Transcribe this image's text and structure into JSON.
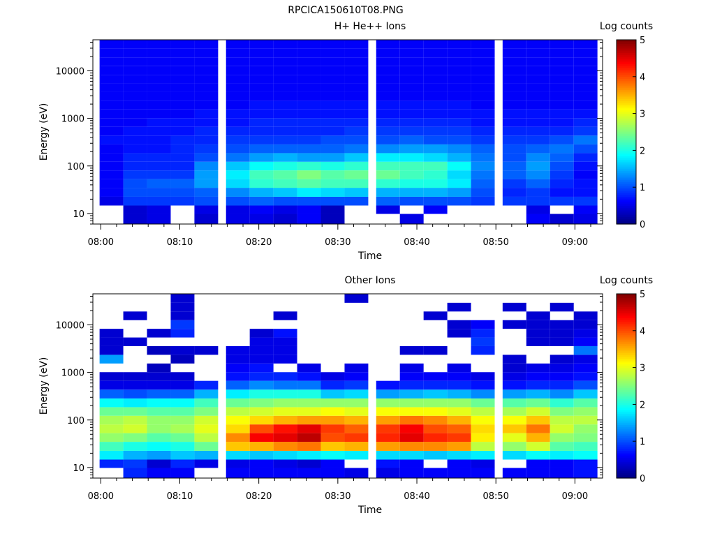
{
  "figure": {
    "title": "RPCICA150610T08.PNG"
  },
  "chart_data": [
    {
      "type": "heatmap",
      "title": "H+ He++ Ions",
      "xlabel": "Time",
      "ylabel": "Energy (eV)",
      "yscale": "log",
      "xlim": [
        "07:59:00",
        "09:03:30"
      ],
      "ylim": [
        6,
        45000
      ],
      "x_ticks": [
        "08:00",
        "08:10",
        "08:20",
        "08:30",
        "08:40",
        "08:50",
        "09:00"
      ],
      "y_ticks": [
        10,
        100,
        1000,
        10000
      ],
      "y_tick_labels": [
        "10",
        "100",
        "1000",
        "10000"
      ],
      "colorbar": {
        "label": "Log counts",
        "min": 0,
        "max": 5,
        "ticks": [
          0,
          1,
          2,
          3,
          4,
          5
        ],
        "colormap": "jet"
      },
      "time_columns": [
        "08:00",
        "08:03",
        "08:06",
        "08:09",
        "08:12",
        "08:16",
        "08:19",
        "08:22",
        "08:25",
        "08:28",
        "08:31",
        "08:35",
        "08:38",
        "08:41",
        "08:44",
        "08:47",
        "08:51",
        "08:54",
        "08:57",
        "09:00"
      ],
      "energy_bins_eV": [
        8,
        12,
        18,
        28,
        43,
        65,
        100,
        150,
        230,
        350,
        540,
        820,
        1250,
        1900,
        2900,
        4400,
        6700,
        10200,
        15500,
        23600,
        36000
      ],
      "log_counts": [
        [
          null,
          0.4,
          0.5,
          null,
          0.4,
          0.5,
          0.5,
          0.4,
          0.6,
          0.3,
          null,
          null,
          0.5,
          null,
          null,
          null,
          null,
          0.6,
          0.4,
          0.5
        ],
        [
          null,
          0.4,
          0.5,
          null,
          0.5,
          0.5,
          0.6,
          0.5,
          0.6,
          0.3,
          null,
          0.5,
          null,
          0.6,
          null,
          null,
          null,
          0.5,
          null,
          0.6
        ],
        [
          0.5,
          0.9,
          0.9,
          0.9,
          1.0,
          1.0,
          1.1,
          1.0,
          1.0,
          1.0,
          1.0,
          1.1,
          1.0,
          1.0,
          1.0,
          0.9,
          0.9,
          0.9,
          0.9,
          0.9
        ],
        [
          0.6,
          1.0,
          1.0,
          1.0,
          1.1,
          1.3,
          1.5,
          1.6,
          1.8,
          1.7,
          1.6,
          1.5,
          1.5,
          1.5,
          1.4,
          1.0,
          0.8,
          0.9,
          0.7,
          0.7
        ],
        [
          0.6,
          1.0,
          1.1,
          1.1,
          1.4,
          1.7,
          2.1,
          2.2,
          2.3,
          2.2,
          2.2,
          2.1,
          2.0,
          2.0,
          1.8,
          1.1,
          0.9,
          1.1,
          0.8,
          0.7
        ],
        [
          0.6,
          0.9,
          0.9,
          0.9,
          1.4,
          1.8,
          2.2,
          2.3,
          2.5,
          2.3,
          2.4,
          2.4,
          2.2,
          2.1,
          1.7,
          1.2,
          1.1,
          1.3,
          0.9,
          0.6
        ],
        [
          0.6,
          0.8,
          0.8,
          0.8,
          1.3,
          1.6,
          1.9,
          2.0,
          2.1,
          2.0,
          2.1,
          2.2,
          2.2,
          2.2,
          1.9,
          1.3,
          1.1,
          1.4,
          1.0,
          0.7
        ],
        [
          0.6,
          0.8,
          0.8,
          0.8,
          1.0,
          1.2,
          1.4,
          1.5,
          1.4,
          1.4,
          1.6,
          1.8,
          1.8,
          1.7,
          1.5,
          1.2,
          1.0,
          1.3,
          1.1,
          0.8
        ],
        [
          0.6,
          0.7,
          0.7,
          0.8,
          0.9,
          1.0,
          1.1,
          1.1,
          1.1,
          1.1,
          1.2,
          1.3,
          1.4,
          1.4,
          1.3,
          1.1,
          1.0,
          1.1,
          1.2,
          1.0
        ],
        [
          0.7,
          0.7,
          0.7,
          0.8,
          0.8,
          0.9,
          0.9,
          0.9,
          0.9,
          1.0,
          1.0,
          1.0,
          1.1,
          1.0,
          1.0,
          0.9,
          0.9,
          0.9,
          1.0,
          1.2
        ],
        [
          0.6,
          0.7,
          0.7,
          0.7,
          0.8,
          0.8,
          0.8,
          0.8,
          0.8,
          0.8,
          0.9,
          0.9,
          0.9,
          0.9,
          0.9,
          0.8,
          0.8,
          0.8,
          0.8,
          0.9
        ],
        [
          0.6,
          0.6,
          0.7,
          0.7,
          0.7,
          0.7,
          0.8,
          0.8,
          0.8,
          0.8,
          0.8,
          0.8,
          0.8,
          0.8,
          0.8,
          0.7,
          0.7,
          0.7,
          0.7,
          0.8
        ],
        [
          0.6,
          0.6,
          0.6,
          0.6,
          0.7,
          0.7,
          0.7,
          0.7,
          0.7,
          0.7,
          0.7,
          0.7,
          0.7,
          0.7,
          0.7,
          0.7,
          0.7,
          0.7,
          0.7,
          0.7
        ],
        [
          0.6,
          0.6,
          0.6,
          0.6,
          0.6,
          0.6,
          0.7,
          0.7,
          0.7,
          0.7,
          0.7,
          0.7,
          0.7,
          0.7,
          0.7,
          0.6,
          0.6,
          0.6,
          0.6,
          0.6
        ],
        [
          0.6,
          0.6,
          0.6,
          0.6,
          0.6,
          0.6,
          0.6,
          0.6,
          0.6,
          0.6,
          0.6,
          0.6,
          0.6,
          0.6,
          0.6,
          0.6,
          0.6,
          0.6,
          0.6,
          0.6
        ],
        [
          0.6,
          0.6,
          0.6,
          0.6,
          0.6,
          0.6,
          0.6,
          0.6,
          0.6,
          0.6,
          0.6,
          0.6,
          0.6,
          0.6,
          0.6,
          0.6,
          0.6,
          0.6,
          0.6,
          0.6
        ],
        [
          0.6,
          0.6,
          0.6,
          0.6,
          0.6,
          0.6,
          0.6,
          0.6,
          0.6,
          0.6,
          0.6,
          0.6,
          0.6,
          0.6,
          0.6,
          0.6,
          0.6,
          0.6,
          0.6,
          0.6
        ],
        [
          0.6,
          0.6,
          0.6,
          0.6,
          0.6,
          0.6,
          0.6,
          0.6,
          0.6,
          0.6,
          0.6,
          0.6,
          0.6,
          0.6,
          0.6,
          0.6,
          0.6,
          0.6,
          0.6,
          0.6
        ],
        [
          0.6,
          0.6,
          0.6,
          0.6,
          0.6,
          0.6,
          0.6,
          0.6,
          0.6,
          0.6,
          0.6,
          0.6,
          0.6,
          0.6,
          0.6,
          0.6,
          0.6,
          0.6,
          0.6,
          0.6
        ],
        [
          0.6,
          0.6,
          0.6,
          0.6,
          0.6,
          0.6,
          0.6,
          0.6,
          0.6,
          0.6,
          0.6,
          0.6,
          0.6,
          0.6,
          0.6,
          0.6,
          0.6,
          0.6,
          0.6,
          0.6
        ],
        [
          0.6,
          0.6,
          0.6,
          0.6,
          0.6,
          0.6,
          0.6,
          0.6,
          0.6,
          0.6,
          0.6,
          0.6,
          0.6,
          0.6,
          0.6,
          0.6,
          0.6,
          0.6,
          0.6,
          0.6
        ]
      ]
    },
    {
      "type": "heatmap",
      "title": "Other Ions",
      "xlabel": "Time",
      "ylabel": "Energy (eV)",
      "yscale": "log",
      "xlim": [
        "07:59:00",
        "09:03:30"
      ],
      "ylim": [
        6,
        45000
      ],
      "x_ticks": [
        "08:00",
        "08:10",
        "08:20",
        "08:30",
        "08:40",
        "08:50",
        "09:00"
      ],
      "y_ticks": [
        10,
        100,
        1000,
        10000
      ],
      "y_tick_labels": [
        "10",
        "100",
        "1000",
        "10000"
      ],
      "colorbar": {
        "label": "Log counts",
        "min": 0,
        "max": 5,
        "ticks": [
          0,
          1,
          2,
          3,
          4,
          5
        ],
        "colormap": "jet"
      },
      "time_columns": [
        "08:00",
        "08:03",
        "08:06",
        "08:09",
        "08:12",
        "08:16",
        "08:19",
        "08:22",
        "08:25",
        "08:28",
        "08:31",
        "08:35",
        "08:38",
        "08:41",
        "08:44",
        "08:47",
        "08:51",
        "08:54",
        "08:57",
        "09:00"
      ],
      "energy_bins_eV": [
        8,
        12,
        18,
        28,
        43,
        65,
        100,
        150,
        230,
        350,
        540,
        820,
        1250,
        1900,
        2900,
        4400,
        6700,
        10200,
        15500,
        23600,
        36000
      ],
      "log_counts": [
        [
          null,
          0.8,
          0.6,
          0.6,
          null,
          0.6,
          0.6,
          0.6,
          0.6,
          0.6,
          0.5,
          0.5,
          0.6,
          0.6,
          0.6,
          0.6,
          0.6,
          0.6,
          0.6,
          0.7
        ],
        [
          0.8,
          0.9,
          0.4,
          0.8,
          0.5,
          0.5,
          0.6,
          0.5,
          0.4,
          0.6,
          null,
          0.7,
          0.6,
          null,
          0.6,
          0.5,
          null,
          0.6,
          0.6,
          0.7
        ],
        [
          1.8,
          1.5,
          1.4,
          1.6,
          1.5,
          1.7,
          1.6,
          1.7,
          1.8,
          1.9,
          1.8,
          1.7,
          1.7,
          1.6,
          1.7,
          1.8,
          1.7,
          1.9,
          1.8,
          1.9
        ],
        [
          2.2,
          2.0,
          1.9,
          2.0,
          2.4,
          3.4,
          3.5,
          3.7,
          3.8,
          3.4,
          3.5,
          3.6,
          3.7,
          3.7,
          3.6,
          2.8,
          2.6,
          2.9,
          2.3,
          2.2
        ],
        [
          2.6,
          2.5,
          2.3,
          2.4,
          2.8,
          3.7,
          4.4,
          4.5,
          4.7,
          4.0,
          4.1,
          4.2,
          4.5,
          4.2,
          4.1,
          3.2,
          3.0,
          3.5,
          2.6,
          2.5
        ],
        [
          2.8,
          2.9,
          2.6,
          2.7,
          3.0,
          3.3,
          4.0,
          4.3,
          4.5,
          4.1,
          3.9,
          4.1,
          4.4,
          4.0,
          3.9,
          3.3,
          3.4,
          3.8,
          2.9,
          2.6
        ],
        [
          2.7,
          2.8,
          2.6,
          2.6,
          2.9,
          3.1,
          3.3,
          3.5,
          3.6,
          3.6,
          3.5,
          3.6,
          3.8,
          3.7,
          3.5,
          3.1,
          3.1,
          3.4,
          2.8,
          2.8
        ],
        [
          2.4,
          2.4,
          2.3,
          2.3,
          2.5,
          2.8,
          2.9,
          3.0,
          3.0,
          3.1,
          3.0,
          3.1,
          3.1,
          3.1,
          3.0,
          2.8,
          2.7,
          2.9,
          2.5,
          2.6
        ],
        [
          1.9,
          1.8,
          1.9,
          1.9,
          2.2,
          2.4,
          2.5,
          2.6,
          2.6,
          2.6,
          2.6,
          2.6,
          2.6,
          2.6,
          2.6,
          2.4,
          2.3,
          2.4,
          2.1,
          2.3
        ],
        [
          1.1,
          1.0,
          1.1,
          1.1,
          1.5,
          1.8,
          2.0,
          2.0,
          2.0,
          1.6,
          1.7,
          1.4,
          1.5,
          1.6,
          1.5,
          1.3,
          1.4,
          1.5,
          1.3,
          1.6
        ],
        [
          0.5,
          0.5,
          0.5,
          0.5,
          0.8,
          1.1,
          1.3,
          1.2,
          1.2,
          0.8,
          0.9,
          0.7,
          0.8,
          0.8,
          0.8,
          0.7,
          0.7,
          0.8,
          0.8,
          1.0
        ],
        [
          0.4,
          0.4,
          0.4,
          0.4,
          null,
          0.7,
          0.8,
          0.8,
          0.7,
          0.5,
          0.6,
          null,
          0.6,
          0.6,
          0.6,
          0.5,
          0.5,
          0.6,
          0.6,
          0.7
        ],
        [
          null,
          null,
          0.3,
          null,
          null,
          0.6,
          0.7,
          null,
          0.5,
          null,
          0.5,
          null,
          0.5,
          null,
          0.5,
          null,
          0.4,
          0.5,
          0.5,
          0.6
        ],
        [
          1.4,
          null,
          null,
          0.3,
          null,
          0.5,
          0.5,
          0.5,
          null,
          null,
          null,
          null,
          null,
          null,
          null,
          null,
          0.4,
          null,
          0.4,
          0.5
        ],
        [
          0.4,
          null,
          0.3,
          0.4,
          0.4,
          0.5,
          0.5,
          0.5,
          null,
          null,
          null,
          null,
          0.4,
          0.4,
          null,
          0.8,
          null,
          null,
          null,
          1.2
        ],
        [
          0.4,
          0.4,
          null,
          null,
          null,
          null,
          0.5,
          0.5,
          null,
          null,
          null,
          null,
          null,
          null,
          null,
          0.9,
          null,
          0.4,
          0.4,
          0.6
        ],
        [
          0.4,
          null,
          0.4,
          0.8,
          null,
          null,
          0.4,
          0.7,
          null,
          null,
          null,
          null,
          null,
          null,
          0.4,
          0.8,
          null,
          0.4,
          0.4,
          0.5
        ],
        [
          null,
          null,
          null,
          0.9,
          null,
          null,
          null,
          null,
          null,
          null,
          null,
          null,
          null,
          null,
          0.4,
          0.6,
          0.4,
          0.4,
          0.4,
          0.4
        ],
        [
          null,
          0.4,
          null,
          0.4,
          null,
          null,
          null,
          0.4,
          null,
          null,
          null,
          null,
          null,
          0.4,
          null,
          null,
          null,
          0.4,
          null,
          0.4
        ],
        [
          null,
          null,
          null,
          0.4,
          null,
          null,
          null,
          null,
          null,
          null,
          null,
          null,
          null,
          null,
          0.4,
          null,
          0.4,
          null,
          0.4,
          null
        ],
        [
          null,
          null,
          null,
          0.4,
          null,
          null,
          null,
          null,
          null,
          null,
          0.4,
          null,
          null,
          null,
          null,
          null,
          null,
          null,
          null,
          null
        ]
      ]
    }
  ]
}
